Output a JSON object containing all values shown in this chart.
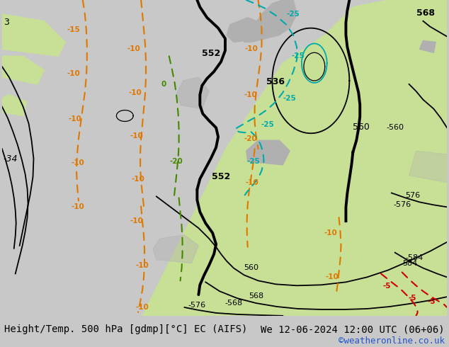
{
  "title_left": "Height/Temp. 500 hPa [gdmp][°C] EC (AIFS)",
  "title_right": "We 12-06-2024 12:00 UTC (06+06)",
  "credit": "©weatheronline.co.uk",
  "title_fontsize": 10,
  "credit_fontsize": 9,
  "figsize": [
    6.34,
    4.9
  ],
  "dpi": 100,
  "bg_gray": "#c8c8c8",
  "bg_green": "#c8e096",
  "bg_gray_terrain": "#b0b0b0",
  "color_height": "#000000",
  "color_temp_orange": "#e07800",
  "color_temp_cyan": "#00aaaa",
  "color_temp_red": "#cc0000",
  "color_temp_green": "#448800"
}
